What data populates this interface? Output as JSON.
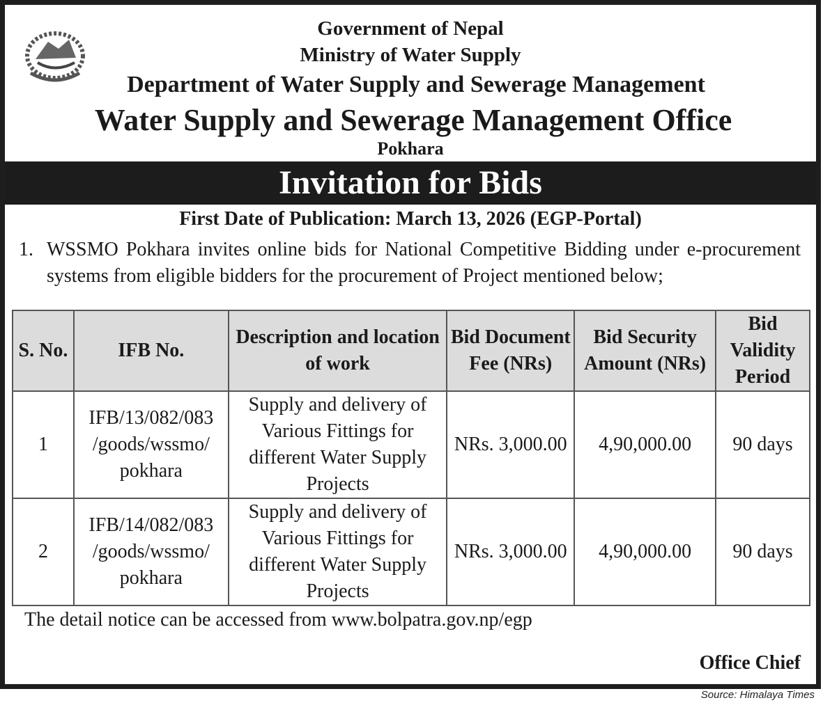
{
  "header": {
    "line1": "Government of Nepal",
    "line2": "Ministry of Water Supply",
    "line3": "Department of Water Supply and Sewerage Management",
    "line4": "Water Supply and Sewerage Management Office",
    "line5": "Pokhara"
  },
  "logo": {
    "icon": "nepal-emblem-icon"
  },
  "title": "Invitation for Bids",
  "publication": "First Date of Publication: March 13, 2026 (EGP-Portal)",
  "paragraph": {
    "number": "1.",
    "text": "WSSMO Pokhara invites online bids for National Competitive Bidding under e-procurement systems from eligible bidders for the procurement of Project mentioned below;"
  },
  "table": {
    "headers": [
      "S. No.",
      "IFB No.",
      "Description and location of work",
      "Bid Document Fee (NRs)",
      "Bid Security Amount (NRs)",
      "Bid Validity Period"
    ],
    "rows": [
      [
        "1",
        "IFB/13/082/083 /goods/wssmo/ pokhara",
        "Supply and delivery of Various Fittings for different Water Supply Projects",
        "NRs. 3,000.00",
        "4,90,000.00",
        "90 days"
      ],
      [
        "2",
        "IFB/14/082/083 /goods/wssmo/ pokhara",
        "Supply and delivery of Various Fittings for different Water Supply Projects",
        "NRs. 3,000.00",
        "4,90,000.00",
        "90 days"
      ]
    ]
  },
  "footer": {
    "notice": "The detail notice can be accessed from www.bolpatra.gov.np/egp",
    "signatory": "Office Chief"
  },
  "source": "Source: Himalaya Times"
}
